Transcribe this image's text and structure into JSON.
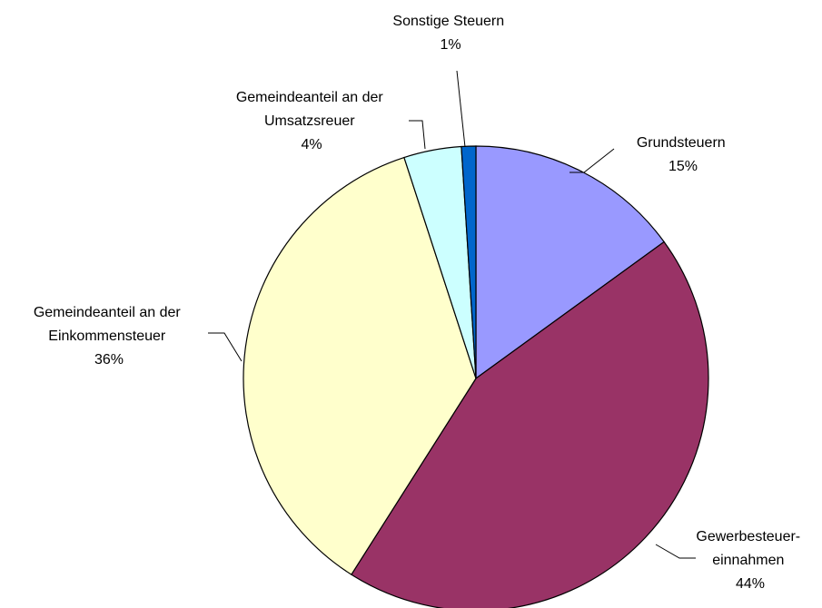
{
  "chart_data": {
    "type": "pie",
    "title": "",
    "slices": [
      {
        "name": "Grundsteuern",
        "label_lines": [
          "Grundsteuern",
          "15%"
        ],
        "value": 15,
        "color": "#9999FF"
      },
      {
        "name": "Gewerbesteuer-einnahmen",
        "label_lines": [
          "Gewerbesteuer-",
          "einnahmen",
          "44%"
        ],
        "value": 44,
        "color": "#993366"
      },
      {
        "name": "Gemeindeanteil an der Einkommensteuer",
        "label_lines": [
          "Gemeindeanteil an der",
          "Einkommensteuer",
          "36%"
        ],
        "value": 36,
        "color": "#FFFFCC"
      },
      {
        "name": "Gemeindeanteil an der Umsatzsreuer",
        "label_lines": [
          "Gemeindeanteil an der",
          "Umsatzsreuer",
          "4%"
        ],
        "value": 4,
        "color": "#CCFFFF"
      },
      {
        "name": "Sonstige Steuern",
        "label_lines": [
          "Sonstige Steuern",
          "1%"
        ],
        "value": 1,
        "color": "#0066CC"
      }
    ],
    "start": "12 o'clock",
    "direction": "clockwise",
    "legend": "none"
  }
}
